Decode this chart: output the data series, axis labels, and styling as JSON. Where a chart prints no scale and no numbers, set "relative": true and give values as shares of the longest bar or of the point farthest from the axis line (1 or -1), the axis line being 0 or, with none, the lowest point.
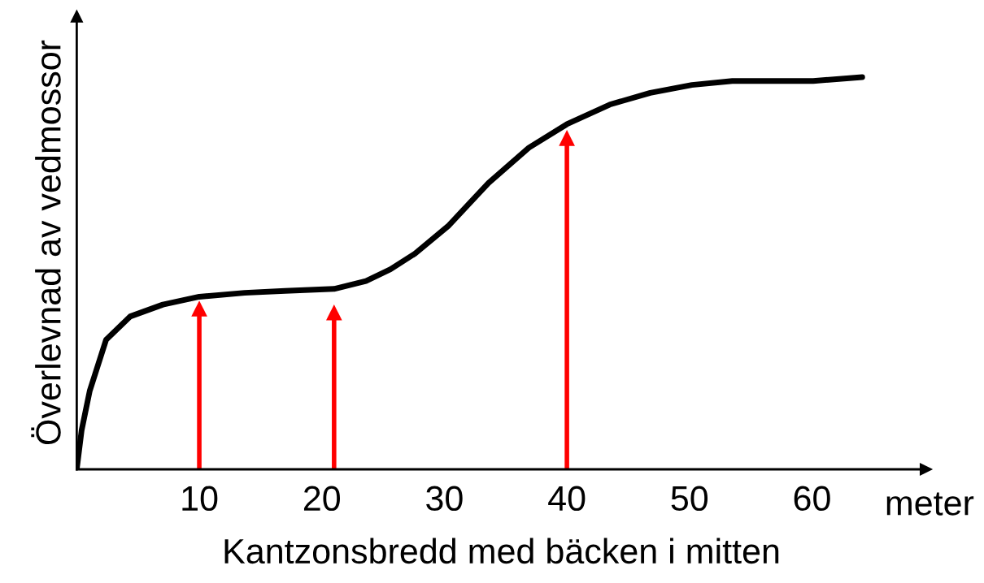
{
  "chart_data": {
    "type": "line",
    "relative": true,
    "xlabel": "Kantzonsbredd med bäcken i mitten",
    "ylabel": "Överlevnad av vedmossor",
    "annotations": [
      "meter"
    ],
    "xlim": [
      0,
      69.3
    ],
    "xticks": [
      10,
      20,
      30,
      40,
      50,
      60
    ],
    "grid": false,
    "legend": false,
    "series": [
      {
        "color": "#000000",
        "x": [
          0,
          0.4,
          1.06,
          2.39,
          4.38,
          7.03,
          10.0,
          13.7,
          17.0,
          21.0,
          23.6,
          25.6,
          27.6,
          30.3,
          33.6,
          36.9,
          40.0,
          43.5,
          46.8,
          50.2,
          53.5,
          56.8,
          60.1,
          64.1
        ],
        "values": [
          0,
          0.1,
          0.2,
          0.33,
          0.39,
          0.42,
          0.44,
          0.45,
          0.455,
          0.46,
          0.48,
          0.51,
          0.55,
          0.62,
          0.73,
          0.82,
          0.88,
          0.93,
          0.96,
          0.98,
          0.99,
          0.99,
          0.99,
          1.0
        ]
      },
      {
        "type": "lollipop",
        "color": "#ff0000",
        "marker": "triangle",
        "x": [
          10,
          21,
          40
        ],
        "values": [
          0.41,
          0.4,
          0.845
        ]
      }
    ]
  }
}
